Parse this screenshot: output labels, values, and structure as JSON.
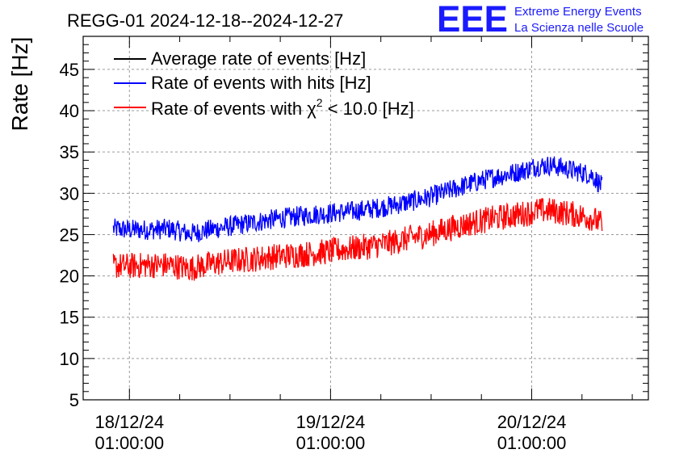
{
  "chart_data": {
    "type": "line",
    "title": "REGG-01 2024-12-18--2024-12-27",
    "ylabel": "Rate [Hz]",
    "xlabel": "",
    "ylim": [
      5,
      49
    ],
    "yticks": [
      5,
      10,
      15,
      20,
      25,
      30,
      35,
      40,
      45
    ],
    "xlim": [
      -0.23,
      2.58
    ],
    "x_unit": "days after 18/12/24 01:00:00",
    "xticks": [
      {
        "x": 0,
        "date": "18/12/24",
        "time": "01:00:00"
      },
      {
        "x": 1,
        "date": "19/12/24",
        "time": "01:00:00"
      },
      {
        "x": 2,
        "date": "20/12/24",
        "time": "01:00:00"
      }
    ],
    "grid": true,
    "legend_position": "top-left",
    "series": [
      {
        "name": "Average rate of events [Hz]",
        "color": "#000000",
        "x": [],
        "values": []
      },
      {
        "name": "Rate of events with hits [Hz]",
        "color": "#0000ff",
        "x": [
          -0.08,
          0.0,
          0.1,
          0.2,
          0.3,
          0.4,
          0.5,
          0.6,
          0.7,
          0.8,
          0.9,
          1.0,
          1.1,
          1.2,
          1.3,
          1.4,
          1.5,
          1.6,
          1.7,
          1.8,
          1.9,
          1.98,
          2.02,
          2.1,
          2.2,
          2.3,
          2.35
        ],
        "values": [
          25.7,
          25.6,
          25.6,
          25.7,
          25.1,
          25.6,
          26.0,
          26.4,
          26.8,
          27.1,
          27.4,
          27.6,
          27.8,
          28.1,
          28.5,
          29.0,
          29.6,
          30.4,
          31.2,
          31.9,
          32.4,
          32.9,
          33.3,
          33.4,
          32.8,
          32.2,
          30.8
        ]
      },
      {
        "name": "Rate of events with χ2 < 10.0 [Hz]",
        "color": "#ff0000",
        "x": [
          -0.08,
          0.0,
          0.1,
          0.2,
          0.3,
          0.4,
          0.5,
          0.6,
          0.7,
          0.8,
          0.9,
          1.0,
          1.1,
          1.2,
          1.3,
          1.4,
          1.5,
          1.6,
          1.7,
          1.8,
          1.9,
          1.98,
          2.02,
          2.1,
          2.2,
          2.3,
          2.35
        ],
        "values": [
          21.2,
          21.2,
          21.3,
          21.3,
          20.9,
          21.4,
          21.8,
          22.0,
          22.3,
          22.5,
          22.7,
          23.0,
          23.3,
          23.6,
          24.0,
          24.6,
          25.1,
          25.8,
          26.4,
          26.9,
          27.3,
          27.6,
          27.9,
          27.9,
          27.5,
          27.0,
          26.2
        ]
      }
    ]
  },
  "legend": {
    "items": [
      {
        "text": "Average rate of events [Hz]",
        "color": "#000000"
      },
      {
        "text": "Rate of events with hits [Hz]",
        "color": "#0000ff"
      },
      {
        "text_prefix": "Rate of events with ",
        "chi": "χ",
        "sup": "2",
        "text_suffix": " < 10.0 [Hz]",
        "color": "#ff0000"
      }
    ]
  },
  "logo": {
    "mark": "EEE",
    "line1": "Extreme Energy Events",
    "line2": "La Scienza nelle Scuole",
    "color": "#1a1aff"
  }
}
